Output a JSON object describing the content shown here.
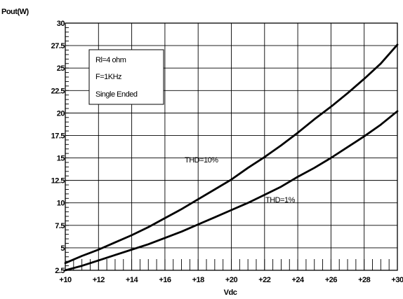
{
  "chart_data": {
    "type": "line",
    "ylabel": "Pout(W)",
    "xlabel": "Vdc",
    "xlim": [
      10,
      30
    ],
    "ylim": [
      2.5,
      30
    ],
    "x_ticks": [
      10,
      12,
      14,
      16,
      18,
      20,
      22,
      24,
      26,
      28,
      30
    ],
    "x_tick_labels": [
      "+10",
      "+12",
      "+14",
      "+16",
      "+18",
      "+20",
      "+22",
      "+24",
      "+26",
      "+28",
      "+30"
    ],
    "y_ticks": [
      2.5,
      5,
      7.5,
      10,
      12.5,
      15,
      17.5,
      20,
      22.5,
      25,
      27.5,
      30
    ],
    "y_tick_labels": [
      "2.5",
      "5",
      "7.5",
      "10",
      "12.5",
      "15",
      "17.5",
      "20",
      "22.5",
      "25",
      "27.5",
      "30"
    ],
    "grid": true,
    "series": [
      {
        "name": "THD=10%",
        "x": [
          10,
          11,
          12,
          13,
          14,
          15,
          16,
          17,
          18,
          19,
          20,
          21,
          22,
          23,
          24,
          25,
          26,
          27,
          28,
          29,
          30
        ],
        "values": [
          3.3,
          4.1,
          4.8,
          5.6,
          6.4,
          7.3,
          8.3,
          9.3,
          10.4,
          11.5,
          12.6,
          13.9,
          15.1,
          16.4,
          17.8,
          19.3,
          20.7,
          22.2,
          23.8,
          25.5,
          27.6
        ]
      },
      {
        "name": "THD=1%",
        "x": [
          10,
          11,
          12,
          13,
          14,
          15,
          16,
          17,
          18,
          19,
          20,
          21,
          22,
          23,
          24,
          25,
          26,
          27,
          28,
          29,
          30
        ],
        "values": [
          2.5,
          3.0,
          3.6,
          4.2,
          4.8,
          5.4,
          6.1,
          6.8,
          7.6,
          8.4,
          9.2,
          10.0,
          10.9,
          11.8,
          12.9,
          13.9,
          15.0,
          16.2,
          17.4,
          18.7,
          20.2
        ]
      }
    ],
    "annotations": {
      "box_lines": [
        "Rl=4 ohm",
        "F=1KHz",
        "Single Ended"
      ],
      "label_thd10": "THD=10%",
      "label_thd1": "THD=1%"
    },
    "colors": {
      "line": "#000000",
      "grid": "#000000",
      "background": "#ffffff"
    }
  }
}
